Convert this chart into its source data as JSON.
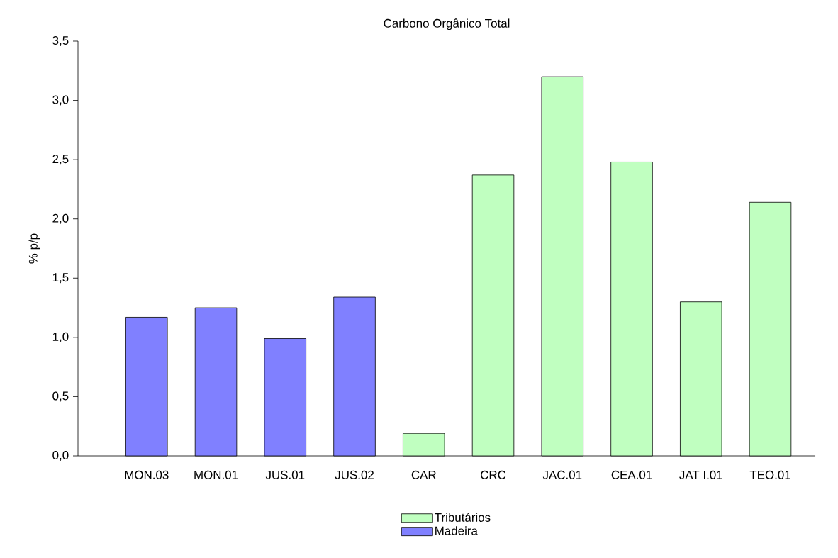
{
  "chart_data": {
    "type": "bar",
    "title": "Carbono Orgânico Total",
    "ylabel": "% p/p",
    "categories": [
      "MON.03",
      "MON.01",
      "JUS.01",
      "JUS.02",
      "CAR",
      "CRC",
      "JAC.01",
      "CEA.01",
      "JAT I.01",
      "TEO.01"
    ],
    "series": [
      {
        "name": "Tributários",
        "color": "#c0ffc0",
        "values": [
          null,
          null,
          null,
          null,
          0.19,
          2.37,
          3.2,
          2.48,
          1.3,
          2.14
        ]
      },
      {
        "name": "Madeira",
        "color": "#8080ff",
        "values": [
          1.17,
          1.25,
          0.99,
          1.34,
          null,
          null,
          null,
          null,
          null,
          null
        ]
      }
    ],
    "ylim": [
      0,
      3.5
    ],
    "yticks": [
      {
        "value": 0,
        "label": "0,0"
      },
      {
        "value": 0.5,
        "label": "0,5"
      },
      {
        "value": 1,
        "label": "1,0"
      },
      {
        "value": 1.5,
        "label": "1,5"
      },
      {
        "value": 2,
        "label": "2,0"
      },
      {
        "value": 2.5,
        "label": "2,5"
      },
      {
        "value": 3,
        "label": "3,0"
      },
      {
        "value": 3.5,
        "label": "3,5"
      }
    ],
    "legend": "bottom",
    "grid": false
  }
}
